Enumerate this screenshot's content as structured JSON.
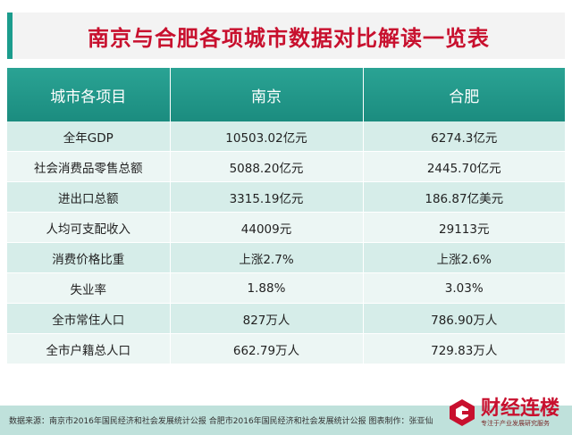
{
  "title": "南京与合肥各项城市数据对比解读一览表",
  "table": {
    "headers": [
      "城市各项目",
      "南京",
      "合肥"
    ],
    "rows": [
      [
        "全年GDP",
        "10503.02亿元",
        "6274.3亿元"
      ],
      [
        "社会消费品零售总额",
        "5088.20亿元",
        "2445.70亿元"
      ],
      [
        "进出口总额",
        "3315.19亿元",
        "186.87亿美元"
      ],
      [
        "人均可支配收入",
        "44009元",
        "29113元"
      ],
      [
        "消费价格比重",
        "上涨2.7%",
        "上涨2.6%"
      ],
      [
        "失业率",
        "1.88%",
        "3.03%"
      ],
      [
        "全市常住人口",
        "827万人",
        "786.90万人"
      ],
      [
        "全市户籍总人口",
        "662.79万人",
        "729.83万人"
      ]
    ]
  },
  "footer": {
    "source": "数据来源：南京市2016年国民经济和社会发展统计公报 合肥市2016年国民经济和社会发展统计公报 图表制作：张亚仙"
  },
  "logo": {
    "name": "财经连楼",
    "tagline": "专注于产业发展研究服务"
  },
  "colors": {
    "title": "#c8102e",
    "header_bg": "#1b9c8d",
    "row_odd": "#d6ede9",
    "row_even": "#ecf6f4"
  }
}
